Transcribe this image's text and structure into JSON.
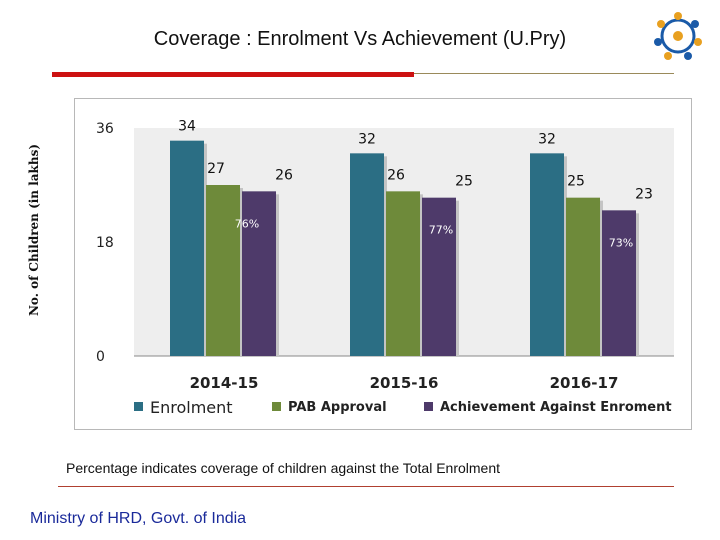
{
  "slide": {
    "title": "Coverage : Enrolment Vs Achievement (U.Pry)",
    "y_axis_title": "No. of Children (in lakhs)",
    "footnote": "Percentage indicates coverage of children against the Total Enrolment",
    "footer": "Ministry of HRD, Govt. of India"
  },
  "colors": {
    "accent_red": "#cc1111",
    "plot_bg": "#eeeeee",
    "enrolment": "#2b6e84",
    "pab": "#6e8a3a",
    "achievement": "#4e3a6a",
    "ministry_text": "#1a2a9a"
  },
  "logo_icon": "people-circle-logo-icon",
  "chart_data": {
    "type": "bar",
    "categories": [
      "2014-15",
      "2015-16",
      "2016-17"
    ],
    "series": [
      {
        "name": "Enrolment",
        "values": [
          34,
          32,
          32
        ],
        "labels": [
          "34",
          "32",
          "32"
        ]
      },
      {
        "name": "PAB Approval",
        "values": [
          27,
          26,
          25
        ],
        "labels": [
          "27",
          "26",
          "25"
        ]
      },
      {
        "name": "Achievement Against Enroment",
        "values": [
          26,
          25,
          23
        ],
        "labels": [
          "26",
          "25",
          "23"
        ]
      }
    ],
    "coverage_labels": [
      "76%",
      "77%",
      "73%"
    ],
    "y_ticks": [
      "0",
      "18",
      "36"
    ],
    "ylim": [
      0,
      36
    ],
    "grid": false,
    "legend_position": "bottom"
  }
}
